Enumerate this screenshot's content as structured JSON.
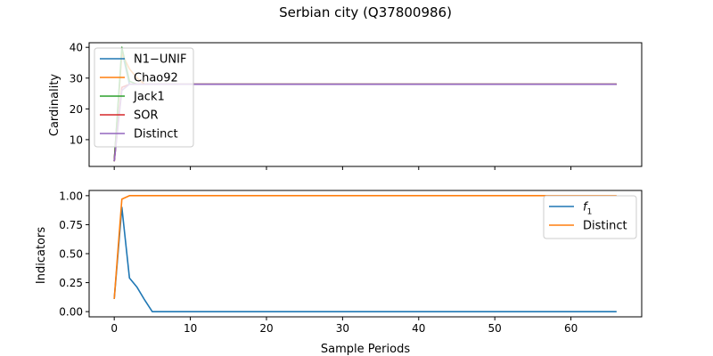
{
  "title": "Serbian city (Q37800986)",
  "colors": {
    "N1-UNIF": "#1f77b4",
    "Chao92": "#ff7f0e",
    "Jack1": "#2ca02c",
    "SOR": "#d62728",
    "Distinct": "#9467bd",
    "f1": "#1f77b4",
    "DistinctIndicator": "#ff7f0e"
  },
  "chart_data": [
    {
      "type": "line",
      "title": "Serbian city (Q37800986)",
      "xlabel": "",
      "ylabel": "Cardinality",
      "xlim": [
        -3.3,
        69.3
      ],
      "ylim": [
        1.3,
        41.5
      ],
      "xticks": [
        0,
        10,
        20,
        30,
        40,
        50,
        60
      ],
      "yticks": [
        10,
        20,
        30,
        40
      ],
      "xticklabels_visible": false,
      "legend": "upper-left",
      "x_range": [
        0,
        66
      ],
      "series": [
        {
          "name": "N1−UNIF",
          "color_key": "N1-UNIF",
          "points": [
            [
              0,
              3.0
            ],
            [
              1,
              39.0
            ],
            [
              2,
              28.0
            ],
            [
              66,
              28.0
            ]
          ]
        },
        {
          "name": "Chao92",
          "color_key": "Chao92",
          "points": [
            [
              0,
              3.0
            ],
            [
              1,
              38.0
            ],
            [
              2,
              33.0
            ],
            [
              3,
              30.0
            ],
            [
              4,
              28.0
            ],
            [
              66,
              28.0
            ]
          ]
        },
        {
          "name": "Jack1",
          "color_key": "Jack1",
          "points": [
            [
              0,
              3.0
            ],
            [
              1,
              40.0
            ],
            [
              2,
              29.0
            ],
            [
              3,
              28.0
            ],
            [
              66,
              28.0
            ]
          ]
        },
        {
          "name": "SOR",
          "color_key": "SOR",
          "points": [
            [
              0,
              3.0
            ],
            [
              1,
              27.0
            ],
            [
              2,
              28.0
            ],
            [
              66,
              28.0
            ]
          ]
        },
        {
          "name": "Distinct",
          "color_key": "Distinct",
          "points": [
            [
              0,
              3.0
            ],
            [
              1,
              26.0
            ],
            [
              2,
              28.0
            ],
            [
              66,
              28.0
            ]
          ]
        }
      ]
    },
    {
      "type": "line",
      "xlabel": "Sample Periods",
      "ylabel": "Indicators",
      "xlim": [
        -3.3,
        69.3
      ],
      "ylim": [
        -0.045,
        1.045
      ],
      "xticks": [
        0,
        10,
        20,
        30,
        40,
        50,
        60
      ],
      "yticks": [
        0.0,
        0.25,
        0.5,
        0.75,
        1.0
      ],
      "yticklabels": [
        "0.00",
        "0.25",
        "0.50",
        "0.75",
        "1.00"
      ],
      "legend": "upper-right",
      "series": [
        {
          "name": "f1",
          "label_base": "f",
          "label_sub": "1",
          "color_key": "f1",
          "points": [
            [
              0,
              0.11
            ],
            [
              1,
              0.9
            ],
            [
              2,
              0.29
            ],
            [
              3,
              0.21
            ],
            [
              4,
              0.1
            ],
            [
              5,
              0.0
            ],
            [
              66,
              0.0
            ]
          ]
        },
        {
          "name": "Distinct",
          "color_key": "DistinctIndicator",
          "points": [
            [
              0,
              0.11
            ],
            [
              1,
              0.97
            ],
            [
              2,
              1.0
            ],
            [
              66,
              1.0
            ]
          ]
        }
      ]
    }
  ]
}
